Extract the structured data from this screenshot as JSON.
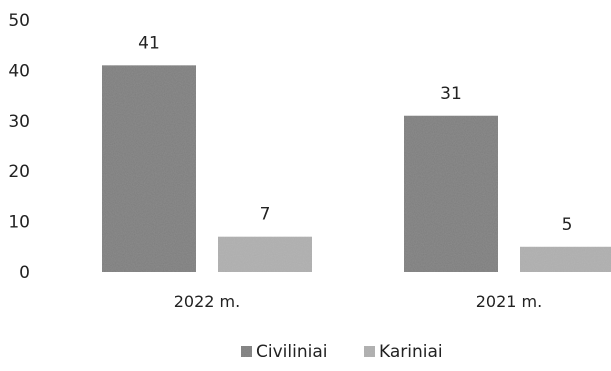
{
  "chart_data": {
    "type": "bar",
    "categories": [
      "2022 m.",
      "2021 m."
    ],
    "series": [
      {
        "name": "Civiliniai",
        "values": [
          41,
          31
        ],
        "color": "#7d7d7d"
      },
      {
        "name": "Kariniai",
        "values": [
          7,
          5
        ],
        "color": "#b5b5b5"
      }
    ],
    "ylim": [
      0,
      50
    ],
    "yticks": [
      0,
      10,
      20,
      30,
      40,
      50
    ],
    "data_labels": true,
    "grid": false,
    "legend_position": "bottom"
  }
}
